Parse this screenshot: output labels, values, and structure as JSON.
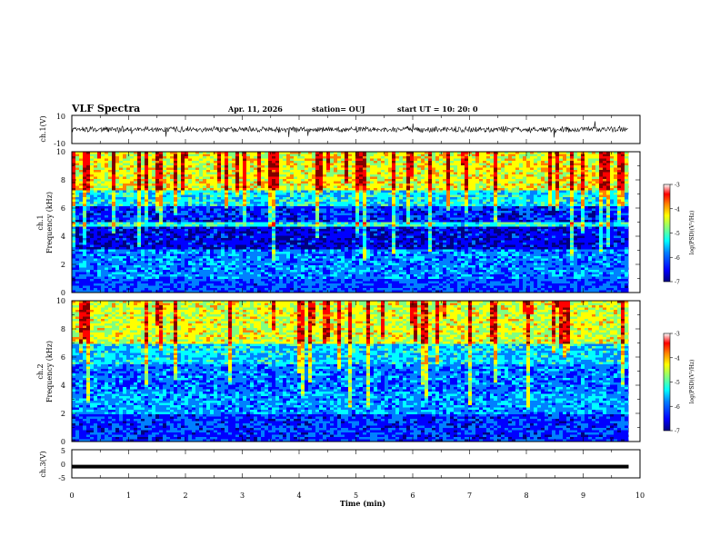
{
  "header": {
    "title": "VLF Spectra",
    "date": "Apr. 11, 2026",
    "station": "station= OUJ",
    "start": "start  UT =   10: 20: 0"
  },
  "chart_data": [
    {
      "id": "waveform-ch1",
      "type": "line",
      "ylabel": "ch.1(V)",
      "ylim": [
        -10,
        10
      ],
      "y_ticks": [
        "10",
        "-10"
      ],
      "baseline": 0,
      "amplitude_typical": 2
    },
    {
      "id": "spectrogram-ch1",
      "type": "heatmap",
      "ylabel_channel": "ch.1",
      "ylabel": "Frequency  (kHz)",
      "ylim": [
        0,
        10
      ],
      "y_ticks": [
        "0",
        "2",
        "4",
        "6",
        "8",
        "10"
      ],
      "colorbar_label": "log(PSD)(V²/Hz)",
      "colorbar_range": [
        -7,
        -3
      ],
      "colorbar_ticks": [
        "-3",
        "-4",
        "-5",
        "-6",
        "-7"
      ]
    },
    {
      "id": "spectrogram-ch2",
      "type": "heatmap",
      "ylabel_channel": "ch.2",
      "ylabel": "Frequency  (kHz)",
      "ylim": [
        0,
        10
      ],
      "y_ticks": [
        "0",
        "2",
        "4",
        "6",
        "8",
        "10"
      ],
      "colorbar_label": "log(PSD)(V²/Hz)",
      "colorbar_range": [
        -7,
        -3
      ],
      "colorbar_ticks": [
        "-3",
        "-4",
        "-5",
        "-6",
        "-7"
      ]
    },
    {
      "id": "waveform-ch3",
      "type": "line",
      "ylabel": "ch.3(V)",
      "ylim": [
        -5,
        5
      ],
      "y_ticks": [
        "5",
        "0",
        "-5"
      ],
      "baseline": -1
    }
  ],
  "x_axis": {
    "label": "Time  (min)",
    "range": [
      0,
      10
    ],
    "data_end": 9.8,
    "ticks": [
      "0",
      "1",
      "2",
      "3",
      "4",
      "5",
      "6",
      "7",
      "8",
      "9",
      "10"
    ]
  },
  "colors": {
    "colormap": [
      "#000080",
      "#0000ff",
      "#0080ff",
      "#00ffff",
      "#80ff80",
      "#ffff00",
      "#ff8000",
      "#ff0000",
      "#800000"
    ],
    "background": "#ffffff",
    "ink": "#000000"
  }
}
